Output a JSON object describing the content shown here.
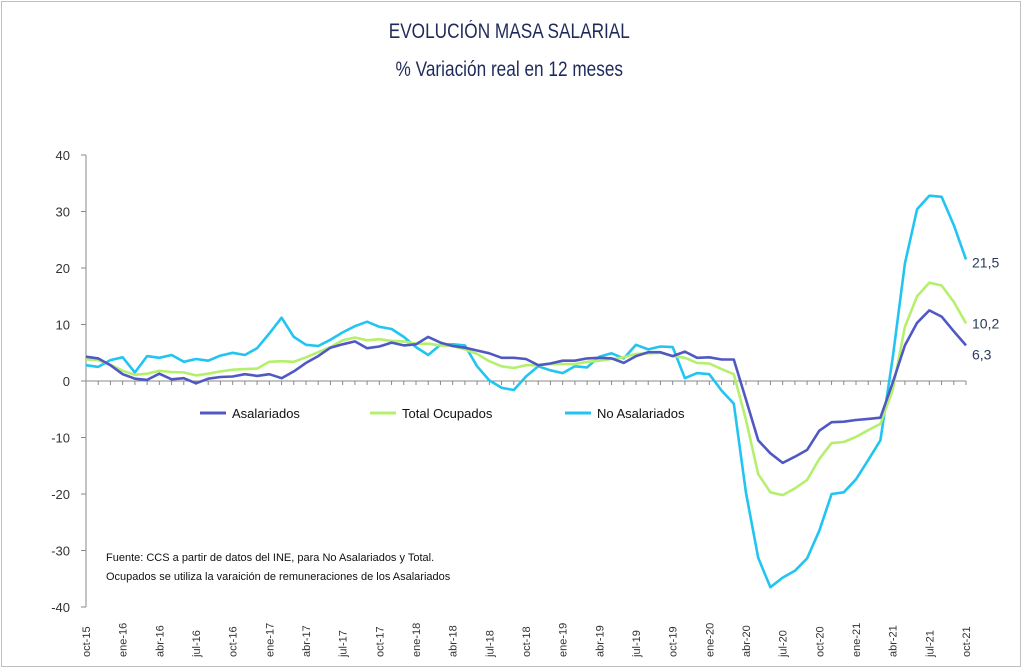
{
  "chart_data": {
    "type": "line",
    "title": "EVOLUCIÓN MASA SALARIAL",
    "subtitle": "% Variación real en 12 meses",
    "ylim": [
      -40,
      40
    ],
    "yticks": [
      40,
      30,
      20,
      10,
      0,
      -10,
      -20,
      -30,
      -40
    ],
    "grid": false,
    "legend_position": "center",
    "x_tick_labels": [
      "oct-15",
      "ene-16",
      "abr-16",
      "jul-16",
      "oct-16",
      "ene-17",
      "abr-17",
      "jul-17",
      "oct-17",
      "ene-18",
      "abr-18",
      "jul-18",
      "oct-18",
      "ene-19",
      "abr-19",
      "jul-19",
      "oct-19",
      "ene-20",
      "abr-20",
      "jul-20",
      "oct-20",
      "ene-21",
      "abr-21",
      "jul-21",
      "oct-21"
    ],
    "x": [
      "oct-15",
      "nov-15",
      "dic-15",
      "ene-16",
      "feb-16",
      "mar-16",
      "abr-16",
      "may-16",
      "jun-16",
      "jul-16",
      "ago-16",
      "sep-16",
      "oct-16",
      "nov-16",
      "dic-16",
      "ene-17",
      "feb-17",
      "mar-17",
      "abr-17",
      "may-17",
      "jun-17",
      "jul-17",
      "ago-17",
      "sep-17",
      "oct-17",
      "nov-17",
      "dic-17",
      "ene-18",
      "feb-18",
      "mar-18",
      "abr-18",
      "may-18",
      "jun-18",
      "jul-18",
      "ago-18",
      "sep-18",
      "oct-18",
      "nov-18",
      "dic-18",
      "ene-19",
      "feb-19",
      "mar-19",
      "abr-19",
      "may-19",
      "jun-19",
      "jul-19",
      "ago-19",
      "sep-19",
      "oct-19",
      "nov-19",
      "dic-19",
      "ene-20",
      "feb-20",
      "mar-20",
      "abr-20",
      "may-20",
      "jun-20",
      "jul-20",
      "ago-20",
      "sep-20",
      "oct-20",
      "nov-20",
      "dic-20",
      "ene-21",
      "feb-21",
      "mar-21",
      "abr-21",
      "may-21",
      "jun-21",
      "jul-21",
      "ago-21",
      "sep-21",
      "oct-21"
    ],
    "series": [
      {
        "name": "Asalariados",
        "color": "#5059c2",
        "values": [
          4.3,
          4.0,
          2.8,
          1.2,
          0.4,
          0.2,
          1.3,
          0.3,
          0.5,
          -0.4,
          0.4,
          0.7,
          0.8,
          1.2,
          0.9,
          1.2,
          0.5,
          1.7,
          3.2,
          4.4,
          5.9,
          6.5,
          7.0,
          5.8,
          6.1,
          6.8,
          6.3,
          6.5,
          7.8,
          6.8,
          6.2,
          5.9,
          5.4,
          4.9,
          4.1,
          4.1,
          3.9,
          2.8,
          3.1,
          3.6,
          3.6,
          4.0,
          4.1,
          4.0,
          3.2,
          4.4,
          5.1,
          5.1,
          4.4,
          5.2,
          4.1,
          4.2,
          3.8,
          3.8,
          -3.3,
          -10.5,
          -12.8,
          -14.5,
          -13.4,
          -12.2,
          -8.8,
          -7.3,
          -7.2,
          -6.9,
          -6.7,
          -6.5,
          -0.3,
          6.3,
          10.3,
          12.5,
          11.4,
          8.8,
          6.3
        ]
      },
      {
        "name": "Total Ocupados",
        "color": "#b5ef6e",
        "values": [
          3.8,
          3.7,
          2.9,
          1.8,
          1.1,
          1.3,
          1.8,
          1.6,
          1.5,
          1.0,
          1.3,
          1.7,
          2.0,
          2.1,
          2.2,
          3.4,
          3.5,
          3.4,
          4.2,
          5.1,
          6.0,
          7.2,
          7.7,
          7.2,
          7.4,
          7.1,
          7.0,
          6.6,
          6.6,
          6.3,
          6.2,
          5.6,
          4.8,
          3.5,
          2.6,
          2.3,
          2.8,
          2.8,
          3.0,
          3.0,
          3.0,
          3.4,
          3.6,
          3.9,
          4.2,
          4.8,
          4.9,
          5.0,
          4.4,
          4.1,
          3.2,
          3.1,
          2.1,
          1.2,
          -6.9,
          -16.5,
          -19.7,
          -20.2,
          -19.0,
          -17.5,
          -13.8,
          -11.0,
          -10.8,
          -9.9,
          -8.7,
          -7.6,
          -1.6,
          9.6,
          15.0,
          17.4,
          16.9,
          14.0,
          10.2
        ]
      },
      {
        "name": "No Asalariados",
        "color": "#22c4f2",
        "values": [
          2.8,
          2.5,
          3.7,
          4.2,
          1.5,
          4.4,
          4.1,
          4.6,
          3.4,
          3.9,
          3.6,
          4.5,
          5.0,
          4.6,
          5.8,
          8.4,
          11.2,
          7.8,
          6.4,
          6.2,
          7.3,
          8.6,
          9.7,
          10.5,
          9.6,
          9.2,
          7.8,
          6.0,
          4.6,
          6.4,
          6.5,
          6.3,
          2.6,
          0.1,
          -1.2,
          -1.6,
          0.8,
          2.6,
          1.9,
          1.4,
          2.6,
          2.4,
          4.3,
          4.9,
          4.0,
          6.4,
          5.6,
          6.1,
          6.0,
          0.5,
          1.4,
          1.2,
          -1.7,
          -4.0,
          -19.8,
          -31.3,
          -36.5,
          -34.8,
          -33.6,
          -31.4,
          -26.5,
          -20.0,
          -19.7,
          -17.4,
          -14.0,
          -10.5,
          4.1,
          20.8,
          30.4,
          32.8,
          32.6,
          27.6,
          21.5
        ]
      }
    ],
    "end_labels": [
      "21,5",
      "10,2",
      "6,3"
    ],
    "source_note": [
      "Fuente: CCS a partir de datos del INE, para No Asalariados y Total.",
      "Ocupados se utiliza la varaición de remuneraciones de los Asalariados"
    ]
  }
}
